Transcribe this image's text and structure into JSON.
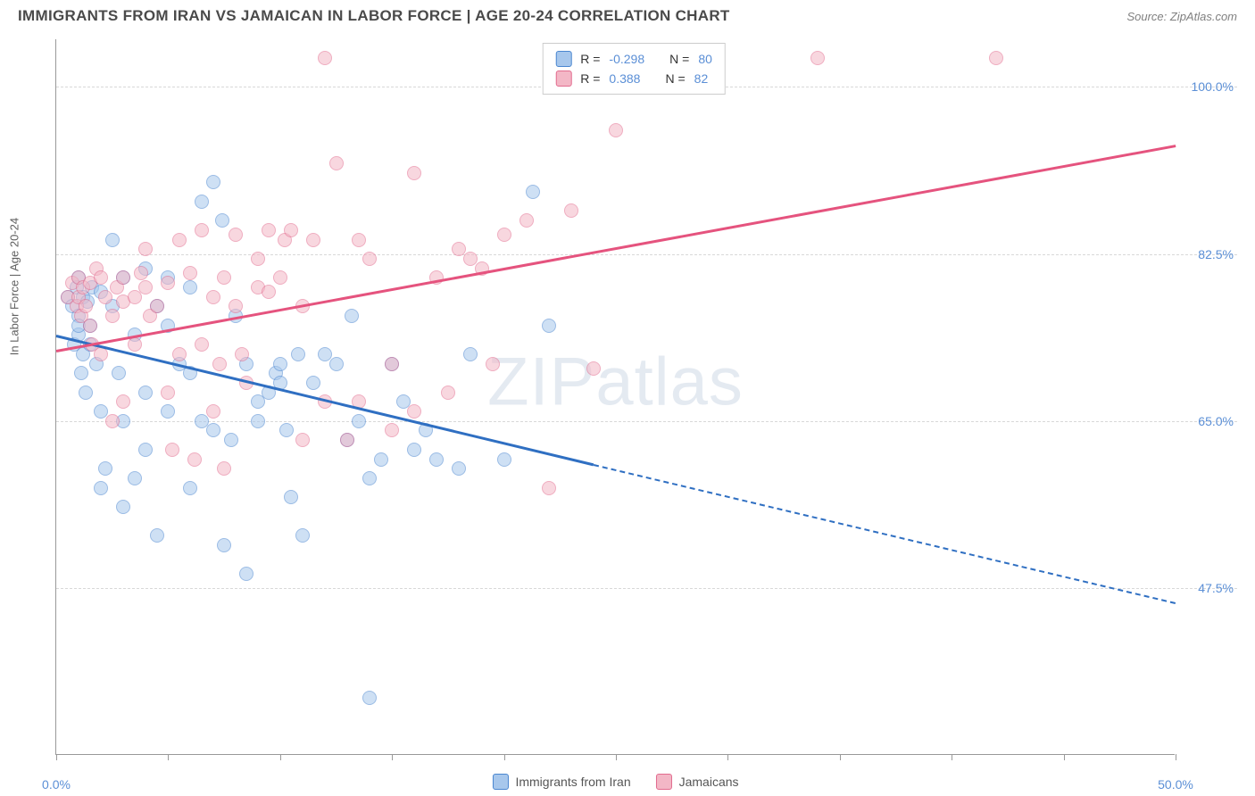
{
  "title": "IMMIGRANTS FROM IRAN VS JAMAICAN IN LABOR FORCE | AGE 20-24 CORRELATION CHART",
  "source": "Source: ZipAtlas.com",
  "y_axis_label": "In Labor Force | Age 20-24",
  "watermark_a": "ZIP",
  "watermark_b": "atlas",
  "chart": {
    "type": "scatter",
    "xlim": [
      0,
      50
    ],
    "ylim": [
      30,
      105
    ],
    "x_ticks": [
      0,
      5,
      10,
      15,
      20,
      25,
      30,
      35,
      40,
      45,
      50
    ],
    "x_tick_labels": {
      "0": "0.0%",
      "50": "50.0%"
    },
    "y_ticks": [
      47.5,
      65.0,
      82.5,
      100.0
    ],
    "y_tick_labels": [
      "47.5%",
      "65.0%",
      "82.5%",
      "100.0%"
    ],
    "background_color": "#ffffff",
    "grid_color": "#d8d8d8",
    "axis_color": "#999999",
    "label_color": "#5b8fd6",
    "series": [
      {
        "name": "Immigrants from Iran",
        "fill": "#a7c7ec",
        "stroke": "#4a86d0",
        "trend_color": "#2f6fc2",
        "r_value": "-0.298",
        "n_value": "80",
        "trend": {
          "x1": 0,
          "y1": 74,
          "x2": 24,
          "y2": 60.5,
          "x2_ext": 50,
          "y2_ext": 46
        },
        "points": [
          [
            0.5,
            78
          ],
          [
            0.7,
            77
          ],
          [
            0.8,
            73
          ],
          [
            0.9,
            79
          ],
          [
            1,
            76
          ],
          [
            1,
            74
          ],
          [
            1,
            75
          ],
          [
            1,
            80
          ],
          [
            1.1,
            70
          ],
          [
            1.2,
            78
          ],
          [
            1.2,
            72
          ],
          [
            1.3,
            68
          ],
          [
            1.4,
            77.5
          ],
          [
            1.5,
            75
          ],
          [
            1.5,
            73
          ],
          [
            1.6,
            79
          ],
          [
            1.8,
            71
          ],
          [
            2,
            78.5
          ],
          [
            2,
            58
          ],
          [
            2,
            66
          ],
          [
            2.2,
            60
          ],
          [
            2.5,
            84
          ],
          [
            2.5,
            77
          ],
          [
            2.8,
            70
          ],
          [
            3,
            80
          ],
          [
            3,
            65
          ],
          [
            3,
            56
          ],
          [
            3.5,
            74
          ],
          [
            3.5,
            59
          ],
          [
            4,
            81
          ],
          [
            4,
            68
          ],
          [
            4,
            62
          ],
          [
            4.5,
            77
          ],
          [
            4.5,
            53
          ],
          [
            5,
            80
          ],
          [
            5,
            66
          ],
          [
            5,
            75
          ],
          [
            5.5,
            71
          ],
          [
            6,
            79
          ],
          [
            6,
            70
          ],
          [
            6,
            58
          ],
          [
            6.5,
            65
          ],
          [
            6.5,
            88
          ],
          [
            7,
            90
          ],
          [
            7,
            64
          ],
          [
            7.4,
            86
          ],
          [
            7.5,
            52
          ],
          [
            7.8,
            63
          ],
          [
            8,
            76
          ],
          [
            8.5,
            49
          ],
          [
            8.5,
            71
          ],
          [
            9,
            65
          ],
          [
            9,
            67
          ],
          [
            9.5,
            68
          ],
          [
            9.8,
            70
          ],
          [
            10,
            69
          ],
          [
            10,
            71
          ],
          [
            10.3,
            64
          ],
          [
            10.5,
            57
          ],
          [
            10.8,
            72
          ],
          [
            11,
            53
          ],
          [
            11.5,
            69
          ],
          [
            12,
            72
          ],
          [
            12.5,
            71
          ],
          [
            13,
            63
          ],
          [
            13.2,
            76
          ],
          [
            13.5,
            65
          ],
          [
            14,
            59
          ],
          [
            14,
            36
          ],
          [
            14.5,
            61
          ],
          [
            15,
            71
          ],
          [
            15.5,
            67
          ],
          [
            16,
            62
          ],
          [
            16.5,
            64
          ],
          [
            17,
            61
          ],
          [
            18,
            60
          ],
          [
            18.5,
            72
          ],
          [
            20,
            61
          ],
          [
            21.3,
            89
          ],
          [
            22,
            75
          ]
        ]
      },
      {
        "name": "Jamaicans",
        "fill": "#f3b7c6",
        "stroke": "#e26b8e",
        "trend_color": "#e5537e",
        "r_value": "0.388",
        "n_value": "82",
        "trend": {
          "x1": 0,
          "y1": 72.5,
          "x2": 50,
          "y2": 94
        },
        "points": [
          [
            0.5,
            78
          ],
          [
            0.7,
            79.5
          ],
          [
            0.9,
            77
          ],
          [
            1,
            80
          ],
          [
            1,
            78
          ],
          [
            1.1,
            76
          ],
          [
            1.2,
            79
          ],
          [
            1.3,
            77
          ],
          [
            1.5,
            79.5
          ],
          [
            1.5,
            75
          ],
          [
            1.6,
            73
          ],
          [
            1.8,
            81
          ],
          [
            2,
            80
          ],
          [
            2,
            72
          ],
          [
            2.2,
            78
          ],
          [
            2.5,
            76
          ],
          [
            2.5,
            65
          ],
          [
            2.7,
            79
          ],
          [
            3,
            80
          ],
          [
            3,
            77.5
          ],
          [
            3,
            67
          ],
          [
            3.5,
            78
          ],
          [
            3.5,
            73
          ],
          [
            3.8,
            80.5
          ],
          [
            4,
            79
          ],
          [
            4,
            83
          ],
          [
            4.2,
            76
          ],
          [
            4.5,
            77
          ],
          [
            5,
            79.5
          ],
          [
            5,
            68
          ],
          [
            5.2,
            62
          ],
          [
            5.5,
            84
          ],
          [
            5.5,
            72
          ],
          [
            6,
            80.5
          ],
          [
            6.2,
            61
          ],
          [
            6.5,
            73
          ],
          [
            6.5,
            85
          ],
          [
            7,
            78
          ],
          [
            7,
            66
          ],
          [
            7.3,
            71
          ],
          [
            7.5,
            80
          ],
          [
            7.5,
            60
          ],
          [
            8,
            77
          ],
          [
            8,
            84.5
          ],
          [
            8.3,
            72
          ],
          [
            8.5,
            69
          ],
          [
            9,
            79
          ],
          [
            9,
            82
          ],
          [
            9.5,
            78.5
          ],
          [
            9.5,
            85
          ],
          [
            10,
            80
          ],
          [
            10.2,
            84
          ],
          [
            10.5,
            85
          ],
          [
            11,
            77
          ],
          [
            11,
            63
          ],
          [
            11.5,
            84
          ],
          [
            12,
            67
          ],
          [
            12,
            103
          ],
          [
            12.5,
            92
          ],
          [
            13,
            63
          ],
          [
            13.5,
            67
          ],
          [
            13.5,
            84
          ],
          [
            14,
            82
          ],
          [
            15,
            64
          ],
          [
            15,
            71
          ],
          [
            16,
            91
          ],
          [
            16,
            66
          ],
          [
            17,
            80
          ],
          [
            17.5,
            68
          ],
          [
            18,
            83
          ],
          [
            18.5,
            82
          ],
          [
            19,
            81
          ],
          [
            19.5,
            71
          ],
          [
            20,
            84.5
          ],
          [
            21,
            86
          ],
          [
            22,
            58
          ],
          [
            23,
            87
          ],
          [
            24,
            70.5
          ],
          [
            25,
            95.5
          ],
          [
            26,
            103
          ],
          [
            34,
            103
          ],
          [
            42,
            103
          ]
        ]
      }
    ]
  },
  "legend_top": {
    "r_prefix": "R =",
    "n_prefix": "N ="
  },
  "legend_bottom_labels": [
    "Immigrants from Iran",
    "Jamaicans"
  ]
}
